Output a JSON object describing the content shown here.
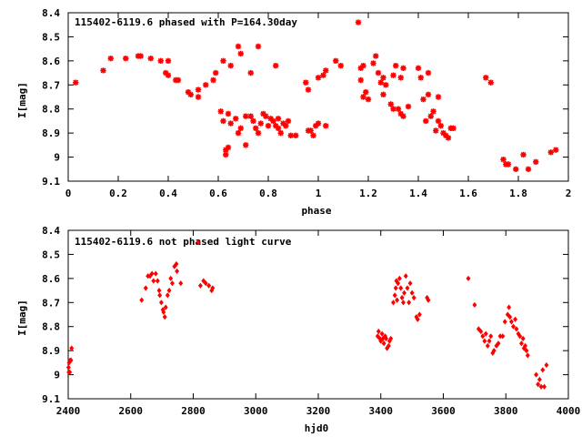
{
  "chart_data": [
    {
      "type": "scatter",
      "title": "115402-6119.6 phased with P=164.30day",
      "xlabel": "phase",
      "ylabel": "I[mag]",
      "xlim": [
        0,
        2
      ],
      "ylim": [
        9.1,
        8.4
      ],
      "y_inverted": true,
      "grid": false,
      "marker": "star",
      "color": "#ff0000",
      "x_ticks": [
        "0",
        "0.2",
        "0.4",
        "0.6",
        "0.8",
        "1",
        "1.2",
        "1.4",
        "1.6",
        "1.8",
        "2"
      ],
      "x_tick_values": [
        0,
        0.2,
        0.4,
        0.6,
        0.8,
        1,
        1.2,
        1.4,
        1.6,
        1.8,
        2
      ],
      "y_ticks": [
        "8.4",
        "8.5",
        "8.6",
        "8.7",
        "8.8",
        "8.9",
        "9",
        "9.1"
      ],
      "y_tick_values": [
        8.4,
        8.5,
        8.6,
        8.7,
        8.8,
        8.9,
        9.0,
        9.1
      ],
      "series": [
        {
          "points": [
            [
              0.03,
              8.69
            ],
            [
              0.14,
              8.64
            ],
            [
              0.17,
              8.59
            ],
            [
              0.23,
              8.59
            ],
            [
              0.28,
              8.58
            ],
            [
              0.29,
              8.58
            ],
            [
              0.33,
              8.59
            ],
            [
              0.37,
              8.6
            ],
            [
              0.4,
              8.6
            ],
            [
              0.39,
              8.65
            ],
            [
              0.4,
              8.66
            ],
            [
              0.43,
              8.68
            ],
            [
              0.44,
              8.68
            ],
            [
              0.48,
              8.73
            ],
            [
              0.49,
              8.74
            ],
            [
              0.52,
              8.72
            ],
            [
              0.52,
              8.75
            ],
            [
              0.55,
              8.7
            ],
            [
              0.58,
              8.68
            ],
            [
              0.59,
              8.65
            ],
            [
              0.62,
              8.6
            ],
            [
              0.61,
              8.81
            ],
            [
              0.62,
              8.85
            ],
            [
              0.63,
              8.97
            ],
            [
              0.63,
              8.99
            ],
            [
              0.64,
              8.96
            ],
            [
              0.64,
              8.82
            ],
            [
              0.65,
              8.62
            ],
            [
              0.65,
              8.86
            ],
            [
              0.67,
              8.84
            ],
            [
              0.68,
              8.54
            ],
            [
              0.68,
              8.9
            ],
            [
              0.69,
              8.57
            ],
            [
              0.69,
              8.88
            ],
            [
              0.71,
              8.83
            ],
            [
              0.71,
              8.95
            ],
            [
              0.73,
              8.83
            ],
            [
              0.73,
              8.65
            ],
            [
              0.74,
              8.85
            ],
            [
              0.75,
              8.88
            ],
            [
              0.76,
              8.9
            ],
            [
              0.76,
              8.54
            ],
            [
              0.77,
              8.86
            ],
            [
              0.78,
              8.82
            ],
            [
              0.79,
              8.83
            ],
            [
              0.8,
              8.87
            ],
            [
              0.81,
              8.84
            ],
            [
              0.82,
              8.85
            ],
            [
              0.83,
              8.62
            ],
            [
              0.83,
              8.87
            ],
            [
              0.84,
              8.84
            ],
            [
              0.84,
              8.88
            ],
            [
              0.85,
              8.9
            ],
            [
              0.86,
              8.86
            ],
            [
              0.87,
              8.87
            ],
            [
              0.88,
              8.85
            ],
            [
              0.89,
              8.91
            ],
            [
              0.91,
              8.91
            ],
            [
              0.95,
              8.69
            ],
            [
              0.96,
              8.72
            ],
            [
              0.96,
              8.89
            ],
            [
              0.97,
              8.89
            ],
            [
              0.98,
              8.91
            ],
            [
              0.99,
              8.87
            ],
            [
              1.0,
              8.67
            ],
            [
              1.0,
              8.86
            ],
            [
              1.02,
              8.66
            ],
            [
              1.03,
              8.64
            ],
            [
              1.03,
              8.87
            ],
            [
              1.07,
              8.6
            ],
            [
              1.09,
              8.62
            ],
            [
              1.16,
              8.44
            ],
            [
              1.17,
              8.68
            ],
            [
              1.17,
              8.63
            ],
            [
              1.18,
              8.62
            ],
            [
              1.18,
              8.75
            ],
            [
              1.19,
              8.73
            ],
            [
              1.2,
              8.76
            ],
            [
              1.22,
              8.61
            ],
            [
              1.23,
              8.58
            ],
            [
              1.24,
              8.65
            ],
            [
              1.25,
              8.69
            ],
            [
              1.26,
              8.74
            ],
            [
              1.26,
              8.67
            ],
            [
              1.27,
              8.7
            ],
            [
              1.29,
              8.78
            ],
            [
              1.3,
              8.8
            ],
            [
              1.3,
              8.66
            ],
            [
              1.31,
              8.62
            ],
            [
              1.32,
              8.8
            ],
            [
              1.33,
              8.82
            ],
            [
              1.33,
              8.67
            ],
            [
              1.34,
              8.63
            ],
            [
              1.34,
              8.83
            ],
            [
              1.36,
              8.79
            ],
            [
              1.4,
              8.63
            ],
            [
              1.41,
              8.67
            ],
            [
              1.42,
              8.76
            ],
            [
              1.43,
              8.85
            ],
            [
              1.44,
              8.65
            ],
            [
              1.44,
              8.74
            ],
            [
              1.45,
              8.83
            ],
            [
              1.46,
              8.81
            ],
            [
              1.47,
              8.89
            ],
            [
              1.48,
              8.75
            ],
            [
              1.48,
              8.85
            ],
            [
              1.49,
              8.87
            ],
            [
              1.5,
              8.9
            ],
            [
              1.51,
              8.91
            ],
            [
              1.52,
              8.92
            ],
            [
              1.53,
              8.88
            ],
            [
              1.54,
              8.88
            ],
            [
              1.67,
              8.67
            ],
            [
              1.69,
              8.69
            ],
            [
              1.74,
              9.01
            ],
            [
              1.75,
              9.03
            ],
            [
              1.76,
              9.03
            ],
            [
              1.79,
              9.05
            ],
            [
              1.82,
              8.99
            ],
            [
              1.84,
              9.05
            ],
            [
              1.87,
              9.02
            ],
            [
              1.93,
              8.98
            ],
            [
              1.95,
              8.97
            ]
          ]
        }
      ]
    },
    {
      "type": "scatter",
      "title": "115402-6119.6 not phased light curve",
      "xlabel": "hjd0",
      "ylabel": "I[mag]",
      "xlim": [
        2400,
        4000
      ],
      "ylim": [
        9.1,
        8.4
      ],
      "y_inverted": true,
      "grid": false,
      "marker": "diamond",
      "color": "#ff0000",
      "x_ticks": [
        "2400",
        "2600",
        "2800",
        "3000",
        "3200",
        "3400",
        "3600",
        "3800",
        "4000"
      ],
      "x_tick_values": [
        2400,
        2600,
        2800,
        3000,
        3200,
        3400,
        3600,
        3800,
        4000
      ],
      "y_ticks": [
        "8.4",
        "8.5",
        "8.6",
        "8.7",
        "8.8",
        "8.9",
        "9",
        "9.1"
      ],
      "y_tick_values": [
        8.4,
        8.5,
        8.6,
        8.7,
        8.8,
        8.9,
        9.0,
        9.1
      ],
      "series": [
        {
          "points": [
            [
              2401,
              8.97
            ],
            [
              2402,
              8.99
            ],
            [
              2403,
              8.95
            ],
            [
              2405,
              8.99
            ],
            [
              2406,
              8.94
            ],
            [
              2409,
              8.94
            ],
            [
              2411,
              8.89
            ],
            [
              2635,
              8.69
            ],
            [
              2648,
              8.64
            ],
            [
              2655,
              8.59
            ],
            [
              2662,
              8.59
            ],
            [
              2668,
              8.58
            ],
            [
              2673,
              8.61
            ],
            [
              2680,
              8.58
            ],
            [
              2686,
              8.61
            ],
            [
              2691,
              8.65
            ],
            [
              2693,
              8.67
            ],
            [
              2698,
              8.7
            ],
            [
              2703,
              8.73
            ],
            [
              2705,
              8.74
            ],
            [
              2709,
              8.76
            ],
            [
              2712,
              8.72
            ],
            [
              2718,
              8.67
            ],
            [
              2723,
              8.65
            ],
            [
              2728,
              8.6
            ],
            [
              2733,
              8.62
            ],
            [
              2740,
              8.55
            ],
            [
              2746,
              8.54
            ],
            [
              2748,
              8.57
            ],
            [
              2760,
              8.62
            ],
            [
              2816,
              8.45
            ],
            [
              2823,
              8.63
            ],
            [
              2833,
              8.61
            ],
            [
              2840,
              8.62
            ],
            [
              2850,
              8.63
            ],
            [
              2859,
              8.65
            ],
            [
              2862,
              8.64
            ],
            [
              3390,
              8.84
            ],
            [
              3393,
              8.82
            ],
            [
              3397,
              8.85
            ],
            [
              3400,
              8.86
            ],
            [
              3404,
              8.83
            ],
            [
              3407,
              8.85
            ],
            [
              3410,
              8.87
            ],
            [
              3414,
              8.84
            ],
            [
              3417,
              8.85
            ],
            [
              3420,
              8.89
            ],
            [
              3425,
              8.88
            ],
            [
              3428,
              8.86
            ],
            [
              3432,
              8.85
            ],
            [
              3440,
              8.7
            ],
            [
              3445,
              8.67
            ],
            [
              3448,
              8.64
            ],
            [
              3450,
              8.61
            ],
            [
              3452,
              8.69
            ],
            [
              3455,
              8.62
            ],
            [
              3460,
              8.6
            ],
            [
              3464,
              8.64
            ],
            [
              3468,
              8.68
            ],
            [
              3472,
              8.7
            ],
            [
              3475,
              8.66
            ],
            [
              3480,
              8.59
            ],
            [
              3485,
              8.64
            ],
            [
              3490,
              8.7
            ],
            [
              3494,
              8.62
            ],
            [
              3500,
              8.66
            ],
            [
              3506,
              8.68
            ],
            [
              3514,
              8.76
            ],
            [
              3518,
              8.77
            ],
            [
              3524,
              8.75
            ],
            [
              3548,
              8.68
            ],
            [
              3552,
              8.69
            ],
            [
              3680,
              8.6
            ],
            [
              3700,
              8.71
            ],
            [
              3713,
              8.81
            ],
            [
              3720,
              8.82
            ],
            [
              3726,
              8.84
            ],
            [
              3732,
              8.86
            ],
            [
              3736,
              8.83
            ],
            [
              3742,
              8.88
            ],
            [
              3747,
              8.86
            ],
            [
              3752,
              8.84
            ],
            [
              3758,
              8.91
            ],
            [
              3762,
              8.9
            ],
            [
              3770,
              8.88
            ],
            [
              3776,
              8.87
            ],
            [
              3782,
              8.84
            ],
            [
              3790,
              8.84
            ],
            [
              3797,
              8.78
            ],
            [
              3806,
              8.75
            ],
            [
              3810,
              8.72
            ],
            [
              3813,
              8.76
            ],
            [
              3818,
              8.78
            ],
            [
              3824,
              8.8
            ],
            [
              3830,
              8.77
            ],
            [
              3834,
              8.81
            ],
            [
              3840,
              8.83
            ],
            [
              3845,
              8.84
            ],
            [
              3850,
              8.87
            ],
            [
              3855,
              8.85
            ],
            [
              3858,
              8.89
            ],
            [
              3862,
              8.88
            ],
            [
              3866,
              8.9
            ],
            [
              3870,
              8.92
            ],
            [
              3897,
              9.0
            ],
            [
              3903,
              9.04
            ],
            [
              3908,
              9.02
            ],
            [
              3913,
              9.05
            ],
            [
              3918,
              8.98
            ],
            [
              3923,
              9.05
            ],
            [
              3930,
              8.96
            ]
          ]
        }
      ]
    }
  ]
}
